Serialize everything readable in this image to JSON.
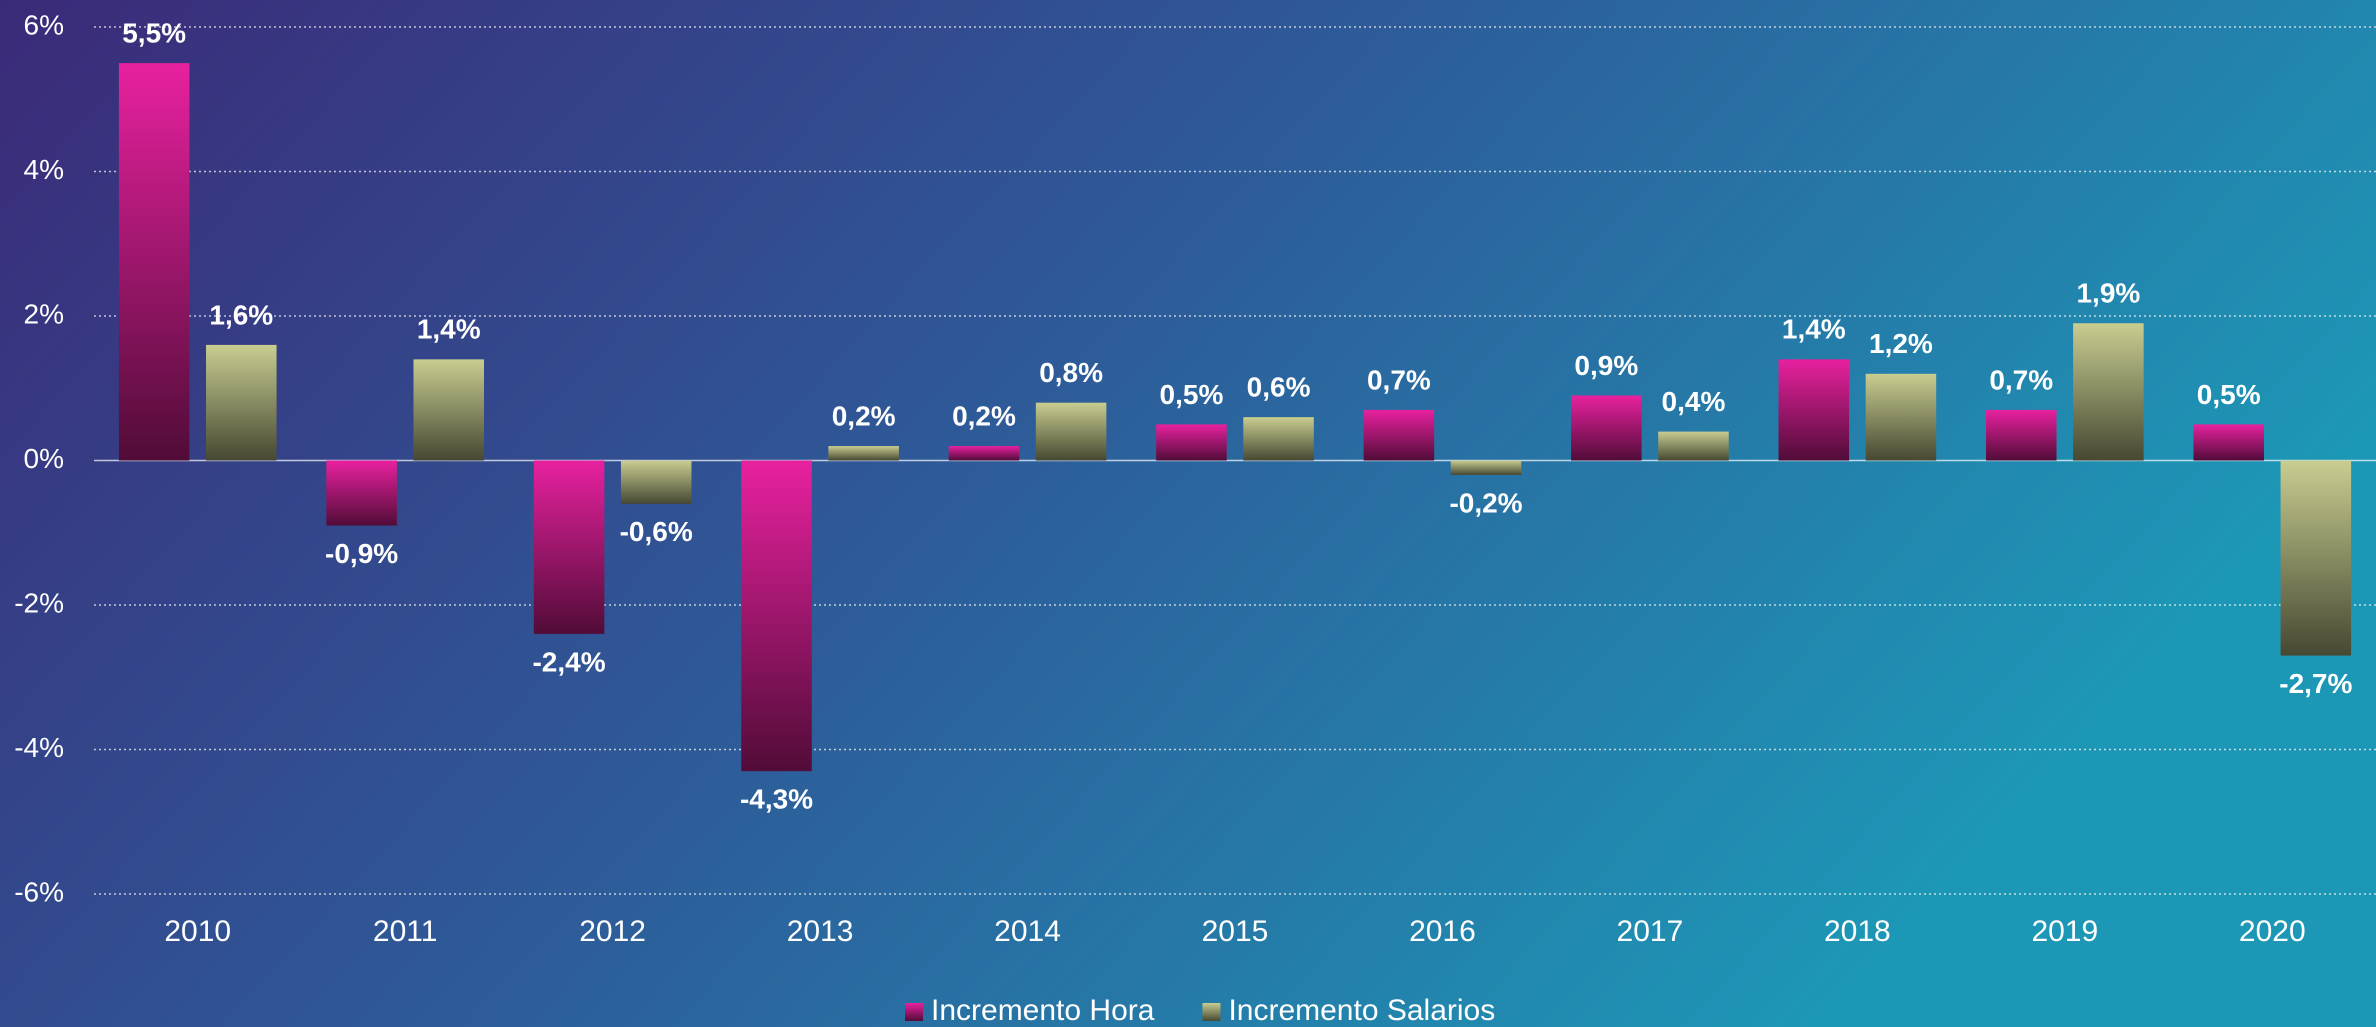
{
  "chart_data": {
    "type": "bar",
    "categories": [
      "2010",
      "2011",
      "2012",
      "2013",
      "2014",
      "2015",
      "2016",
      "2017",
      "2018",
      "2019",
      "2020"
    ],
    "series": [
      {
        "name": "Incremento Hora",
        "color": "#e8219f",
        "values": [
          5.5,
          -0.9,
          -2.4,
          -4.3,
          0.2,
          0.5,
          0.7,
          0.9,
          1.4,
          0.7,
          0.5
        ],
        "value_labels": [
          "5,5%",
          "-0,9%",
          "-2,4%",
          "-4,3%",
          "0,2%",
          "0,5%",
          "0,7%",
          "0,9%",
          "1,4%",
          "0,7%",
          "0,5%"
        ]
      },
      {
        "name": "Incremento Salarios",
        "color": "#c9cd90",
        "values": [
          1.6,
          1.4,
          -0.6,
          0.2,
          0.8,
          0.6,
          -0.2,
          0.4,
          1.2,
          1.9,
          -2.7
        ],
        "value_labels": [
          "1,6%",
          "1,4%",
          "-0,6%",
          "0,2%",
          "0,8%",
          "0,6%",
          "-0,2%",
          "0,4%",
          "1,2%",
          "1,9%",
          "-2,7%"
        ]
      }
    ],
    "ylim": [
      -6,
      6
    ],
    "yticks": [
      {
        "value": -6,
        "label": "-6%"
      },
      {
        "value": -4,
        "label": "-4%"
      },
      {
        "value": -2,
        "label": "-2%"
      },
      {
        "value": 0,
        "label": "0%"
      },
      {
        "value": 2,
        "label": "2%"
      },
      {
        "value": 4,
        "label": "4%"
      },
      {
        "value": 6,
        "label": "6%"
      }
    ],
    "grid": true,
    "legend": "bottom"
  }
}
